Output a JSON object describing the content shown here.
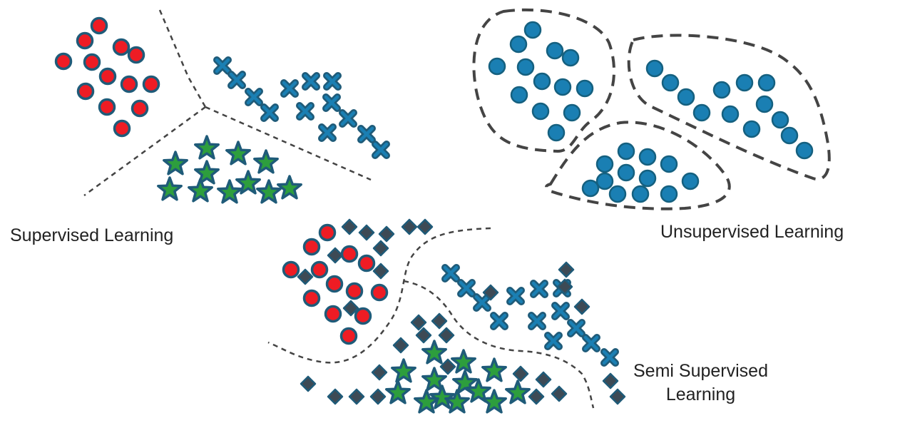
{
  "labels": {
    "supervised": "Supervised Learning",
    "unsupervised": "Unsupervised Learning",
    "semi_supervised_line1": "Semi Supervised",
    "semi_supervised_line2": "Learning"
  },
  "colors": {
    "background": "#ffffff",
    "outline": "#1f5b79",
    "red_fill": "#ee1c24",
    "blue_fill": "#1a7fb3",
    "dark_fill": "#3d4a55",
    "star_fill": "#2d9e3d",
    "dash": "#444444"
  },
  "icons": [
    "red-circle-icon",
    "blue-circle-icon",
    "blue-cross-icon",
    "green-star-icon",
    "dark-diamond-icon"
  ]
}
